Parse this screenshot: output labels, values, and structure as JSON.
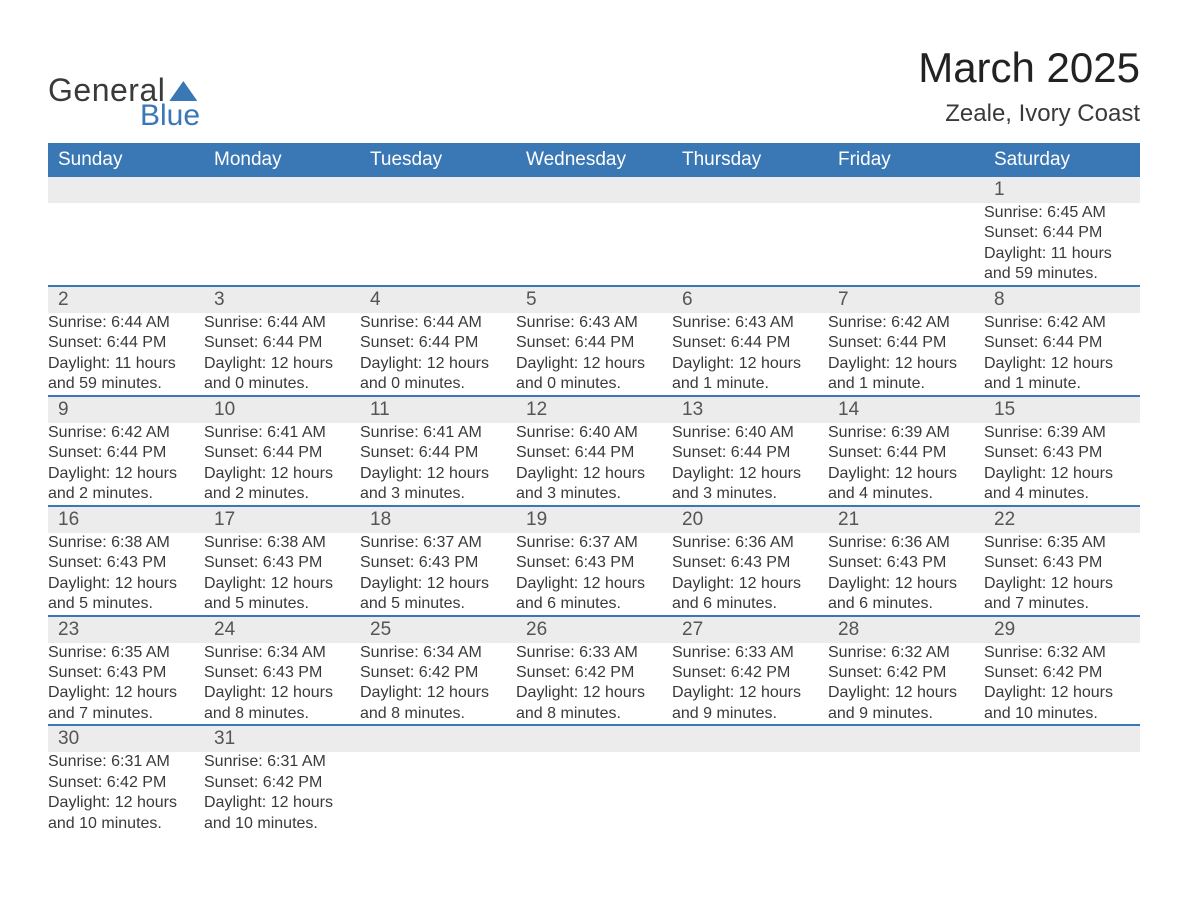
{
  "logo": {
    "text1": "General",
    "text2": "Blue"
  },
  "header": {
    "title": "March 2025",
    "subtitle": "Zeale, Ivory Coast"
  },
  "colors": {
    "header_bg": "#3a77b5",
    "header_text": "#ffffff",
    "daynum_bg": "#ececec",
    "row_border": "#3a77b5",
    "body_text": "#3a3a3a",
    "page_bg": "#ffffff"
  },
  "typography": {
    "title_fontsize": 42,
    "subtitle_fontsize": 24,
    "dayheader_fontsize": 19,
    "daynum_fontsize": 19,
    "detail_fontsize": 16,
    "font_family": "Arial"
  },
  "calendar": {
    "day_headers": [
      "Sunday",
      "Monday",
      "Tuesday",
      "Wednesday",
      "Thursday",
      "Friday",
      "Saturday"
    ],
    "weeks": [
      [
        null,
        null,
        null,
        null,
        null,
        null,
        {
          "n": "1",
          "sunrise": "Sunrise: 6:45 AM",
          "sunset": "Sunset: 6:44 PM",
          "daylight": "Daylight: 11 hours and 59 minutes."
        }
      ],
      [
        {
          "n": "2",
          "sunrise": "Sunrise: 6:44 AM",
          "sunset": "Sunset: 6:44 PM",
          "daylight": "Daylight: 11 hours and 59 minutes."
        },
        {
          "n": "3",
          "sunrise": "Sunrise: 6:44 AM",
          "sunset": "Sunset: 6:44 PM",
          "daylight": "Daylight: 12 hours and 0 minutes."
        },
        {
          "n": "4",
          "sunrise": "Sunrise: 6:44 AM",
          "sunset": "Sunset: 6:44 PM",
          "daylight": "Daylight: 12 hours and 0 minutes."
        },
        {
          "n": "5",
          "sunrise": "Sunrise: 6:43 AM",
          "sunset": "Sunset: 6:44 PM",
          "daylight": "Daylight: 12 hours and 0 minutes."
        },
        {
          "n": "6",
          "sunrise": "Sunrise: 6:43 AM",
          "sunset": "Sunset: 6:44 PM",
          "daylight": "Daylight: 12 hours and 1 minute."
        },
        {
          "n": "7",
          "sunrise": "Sunrise: 6:42 AM",
          "sunset": "Sunset: 6:44 PM",
          "daylight": "Daylight: 12 hours and 1 minute."
        },
        {
          "n": "8",
          "sunrise": "Sunrise: 6:42 AM",
          "sunset": "Sunset: 6:44 PM",
          "daylight": "Daylight: 12 hours and 1 minute."
        }
      ],
      [
        {
          "n": "9",
          "sunrise": "Sunrise: 6:42 AM",
          "sunset": "Sunset: 6:44 PM",
          "daylight": "Daylight: 12 hours and 2 minutes."
        },
        {
          "n": "10",
          "sunrise": "Sunrise: 6:41 AM",
          "sunset": "Sunset: 6:44 PM",
          "daylight": "Daylight: 12 hours and 2 minutes."
        },
        {
          "n": "11",
          "sunrise": "Sunrise: 6:41 AM",
          "sunset": "Sunset: 6:44 PM",
          "daylight": "Daylight: 12 hours and 3 minutes."
        },
        {
          "n": "12",
          "sunrise": "Sunrise: 6:40 AM",
          "sunset": "Sunset: 6:44 PM",
          "daylight": "Daylight: 12 hours and 3 minutes."
        },
        {
          "n": "13",
          "sunrise": "Sunrise: 6:40 AM",
          "sunset": "Sunset: 6:44 PM",
          "daylight": "Daylight: 12 hours and 3 minutes."
        },
        {
          "n": "14",
          "sunrise": "Sunrise: 6:39 AM",
          "sunset": "Sunset: 6:44 PM",
          "daylight": "Daylight: 12 hours and 4 minutes."
        },
        {
          "n": "15",
          "sunrise": "Sunrise: 6:39 AM",
          "sunset": "Sunset: 6:43 PM",
          "daylight": "Daylight: 12 hours and 4 minutes."
        }
      ],
      [
        {
          "n": "16",
          "sunrise": "Sunrise: 6:38 AM",
          "sunset": "Sunset: 6:43 PM",
          "daylight": "Daylight: 12 hours and 5 minutes."
        },
        {
          "n": "17",
          "sunrise": "Sunrise: 6:38 AM",
          "sunset": "Sunset: 6:43 PM",
          "daylight": "Daylight: 12 hours and 5 minutes."
        },
        {
          "n": "18",
          "sunrise": "Sunrise: 6:37 AM",
          "sunset": "Sunset: 6:43 PM",
          "daylight": "Daylight: 12 hours and 5 minutes."
        },
        {
          "n": "19",
          "sunrise": "Sunrise: 6:37 AM",
          "sunset": "Sunset: 6:43 PM",
          "daylight": "Daylight: 12 hours and 6 minutes."
        },
        {
          "n": "20",
          "sunrise": "Sunrise: 6:36 AM",
          "sunset": "Sunset: 6:43 PM",
          "daylight": "Daylight: 12 hours and 6 minutes."
        },
        {
          "n": "21",
          "sunrise": "Sunrise: 6:36 AM",
          "sunset": "Sunset: 6:43 PM",
          "daylight": "Daylight: 12 hours and 6 minutes."
        },
        {
          "n": "22",
          "sunrise": "Sunrise: 6:35 AM",
          "sunset": "Sunset: 6:43 PM",
          "daylight": "Daylight: 12 hours and 7 minutes."
        }
      ],
      [
        {
          "n": "23",
          "sunrise": "Sunrise: 6:35 AM",
          "sunset": "Sunset: 6:43 PM",
          "daylight": "Daylight: 12 hours and 7 minutes."
        },
        {
          "n": "24",
          "sunrise": "Sunrise: 6:34 AM",
          "sunset": "Sunset: 6:43 PM",
          "daylight": "Daylight: 12 hours and 8 minutes."
        },
        {
          "n": "25",
          "sunrise": "Sunrise: 6:34 AM",
          "sunset": "Sunset: 6:42 PM",
          "daylight": "Daylight: 12 hours and 8 minutes."
        },
        {
          "n": "26",
          "sunrise": "Sunrise: 6:33 AM",
          "sunset": "Sunset: 6:42 PM",
          "daylight": "Daylight: 12 hours and 8 minutes."
        },
        {
          "n": "27",
          "sunrise": "Sunrise: 6:33 AM",
          "sunset": "Sunset: 6:42 PM",
          "daylight": "Daylight: 12 hours and 9 minutes."
        },
        {
          "n": "28",
          "sunrise": "Sunrise: 6:32 AM",
          "sunset": "Sunset: 6:42 PM",
          "daylight": "Daylight: 12 hours and 9 minutes."
        },
        {
          "n": "29",
          "sunrise": "Sunrise: 6:32 AM",
          "sunset": "Sunset: 6:42 PM",
          "daylight": "Daylight: 12 hours and 10 minutes."
        }
      ],
      [
        {
          "n": "30",
          "sunrise": "Sunrise: 6:31 AM",
          "sunset": "Sunset: 6:42 PM",
          "daylight": "Daylight: 12 hours and 10 minutes."
        },
        {
          "n": "31",
          "sunrise": "Sunrise: 6:31 AM",
          "sunset": "Sunset: 6:42 PM",
          "daylight": "Daylight: 12 hours and 10 minutes."
        },
        null,
        null,
        null,
        null,
        null
      ]
    ]
  }
}
